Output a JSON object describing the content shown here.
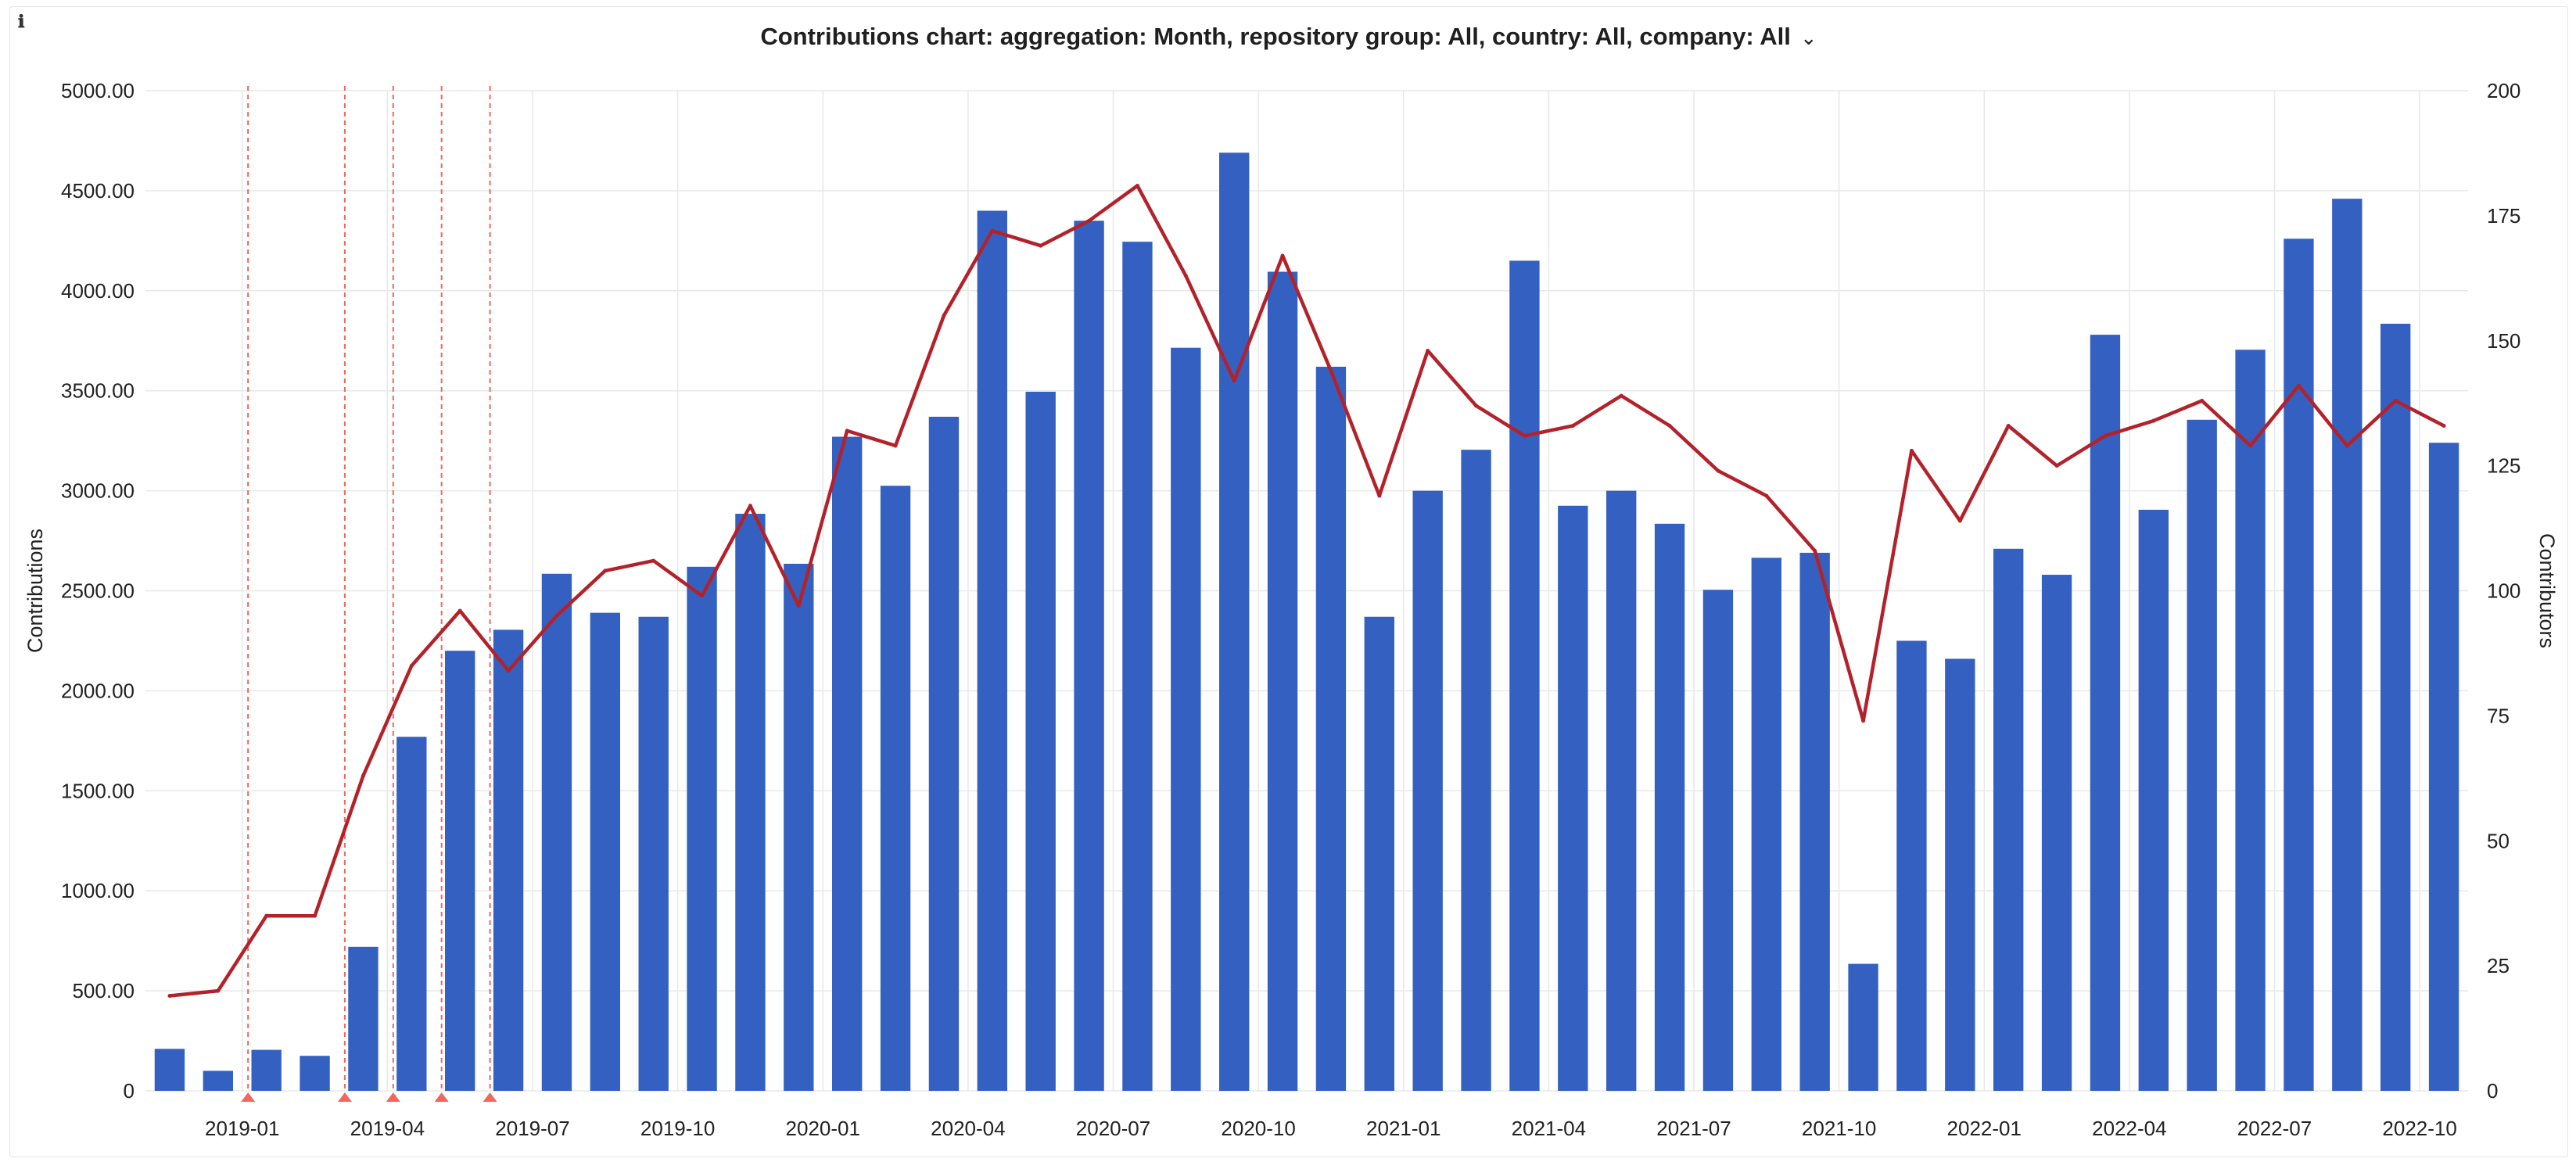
{
  "panel": {
    "info_icon": "info-icon",
    "menu_icon": "chevron-down-icon"
  },
  "chart_data": {
    "type": "bar",
    "title": "Contributions chart: aggregation: Month, repository group: All, country: All, company: All",
    "ylabel": "Contributions",
    "y2label": "Contributors",
    "ylim": [
      0,
      5000
    ],
    "y2lim": [
      0,
      200
    ],
    "yticks": [
      "5000.00",
      "4500.00",
      "4000.00",
      "3500.00",
      "3000.00",
      "2500.00",
      "2000.00",
      "1500.00",
      "1000.00",
      "500.00",
      "0"
    ],
    "y2ticks": [
      "200",
      "175",
      "150",
      "125",
      "100",
      "75",
      "50",
      "25",
      "0"
    ],
    "xticks": [
      "2019-01",
      "2019-04",
      "2019-07",
      "2019-10",
      "2020-01",
      "2020-04",
      "2020-07",
      "2020-10",
      "2021-01",
      "2021-04",
      "2021-07",
      "2021-10",
      "2022-01",
      "2022-04",
      "2022-07",
      "2022-10"
    ],
    "grid": true,
    "colors": {
      "bars": "#3461c1",
      "line": "#b3222a",
      "annotation": "#f2665e",
      "grid": "#e8e8e8"
    },
    "categories": [
      "2018-11",
      "2018-12",
      "2019-01",
      "2019-02",
      "2019-03",
      "2019-04",
      "2019-05",
      "2019-06",
      "2019-07",
      "2019-08",
      "2019-09",
      "2019-10",
      "2019-11",
      "2019-12",
      "2020-01",
      "2020-02",
      "2020-03",
      "2020-04",
      "2020-05",
      "2020-06",
      "2020-07",
      "2020-08",
      "2020-09",
      "2020-10",
      "2020-11",
      "2020-12",
      "2021-01",
      "2021-02",
      "2021-03",
      "2021-04",
      "2021-05",
      "2021-06",
      "2021-07",
      "2021-08",
      "2021-09",
      "2021-10",
      "2021-11",
      "2021-12",
      "2022-01",
      "2022-02",
      "2022-03",
      "2022-04",
      "2022-05",
      "2022-06",
      "2022-07",
      "2022-08",
      "2022-09",
      "2022-10"
    ],
    "series": [
      {
        "name": "Contributions",
        "type": "bar",
        "axis": "left",
        "values": [
          210,
          100,
          205,
          175,
          720,
          1770,
          2200,
          2305,
          2585,
          2390,
          2370,
          2620,
          2885,
          2635,
          3270,
          3025,
          3370,
          4400,
          3495,
          4350,
          4245,
          3715,
          4690,
          4095,
          3620,
          2370,
          3000,
          3205,
          4150,
          2925,
          3000,
          2835,
          2505,
          2665,
          2690,
          635,
          2250,
          2160,
          2710,
          2580,
          3780,
          2905,
          3355,
          3705,
          4260,
          4460,
          3835,
          3240
        ]
      },
      {
        "name": "Contributors",
        "type": "line",
        "axis": "right",
        "values": [
          19,
          20,
          35,
          35,
          63,
          85,
          96,
          84,
          95,
          104,
          106,
          99,
          117,
          97,
          132,
          129,
          155,
          172,
          169,
          174,
          181,
          163,
          142,
          167,
          144,
          119,
          148,
          137,
          131,
          133,
          139,
          133,
          124,
          119,
          108,
          74,
          128,
          114,
          133,
          125,
          131,
          134,
          138,
          129,
          141,
          129,
          138,
          133
        ]
      }
    ],
    "annotations": [
      "2019-01",
      "2019-03",
      "2019-04",
      "2019-05",
      "2019-06"
    ]
  }
}
